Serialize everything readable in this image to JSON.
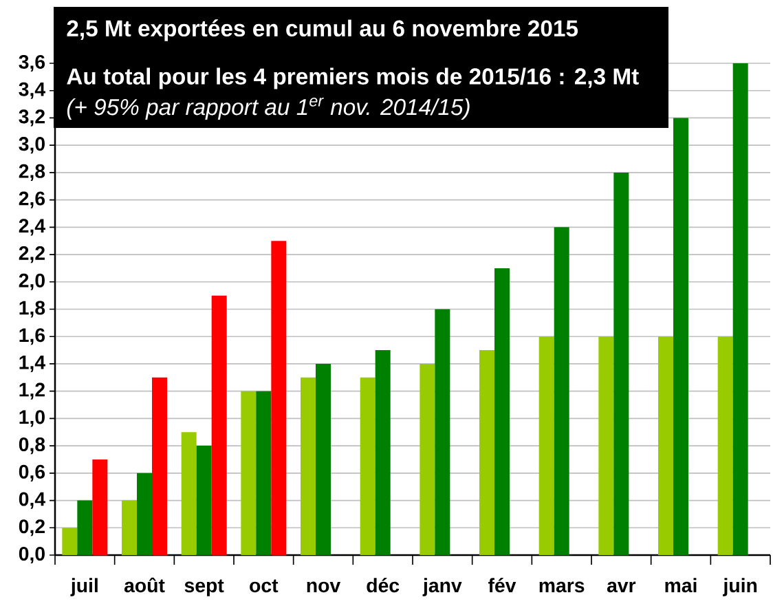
{
  "chart_data": {
    "type": "bar",
    "categories": [
      "juil",
      "août",
      "sept",
      "oct",
      "nov",
      "déc",
      "janv",
      "fév",
      "mars",
      "avr",
      "mai",
      "juin"
    ],
    "series": [
      {
        "color": "#99cc00",
        "values": [
          0.2,
          0.4,
          0.9,
          1.2,
          1.3,
          1.3,
          1.4,
          1.5,
          1.6,
          1.6,
          1.6,
          1.6
        ]
      },
      {
        "color": "#008000",
        "values": [
          0.4,
          0.6,
          0.8,
          1.2,
          1.4,
          1.5,
          1.8,
          2.1,
          2.4,
          2.8,
          3.2,
          3.6
        ]
      },
      {
        "color": "#ff0000",
        "values": [
          0.7,
          1.3,
          1.9,
          2.3,
          null,
          null,
          null,
          null,
          null,
          null,
          null,
          null
        ]
      }
    ],
    "ylim": [
      0,
      3.6
    ],
    "yticks": [
      {
        "value": 0,
        "label": "0,0"
      },
      {
        "value": 0.2,
        "label": "0,2"
      },
      {
        "value": 0.4,
        "label": "0,4"
      },
      {
        "value": 0.6,
        "label": "0,6"
      },
      {
        "value": 0.8,
        "label": "0,8"
      },
      {
        "value": 1.0,
        "label": "1,0"
      },
      {
        "value": 1.2,
        "label": "1,2"
      },
      {
        "value": 1.4,
        "label": "1,4"
      },
      {
        "value": 1.6,
        "label": "1,6"
      },
      {
        "value": 1.8,
        "label": "1,8"
      },
      {
        "value": 2.0,
        "label": "2,0"
      },
      {
        "value": 2.2,
        "label": "2,2"
      },
      {
        "value": 2.4,
        "label": "2,4"
      },
      {
        "value": 2.6,
        "label": "2,6"
      },
      {
        "value": 2.8,
        "label": "2,8"
      },
      {
        "value": 3.0,
        "label": "3,0"
      },
      {
        "value": 3.2,
        "label": "3,2"
      },
      {
        "value": 3.4,
        "label": "3,4"
      },
      {
        "value": 3.6,
        "label": "3,6"
      }
    ],
    "grid": "y",
    "annotations": [
      "2,5 Mt exportées en cumul au 6 novembre 2015",
      "Au total pour les 4 premiers mois de 2015/16 : 2,3 Mt",
      "(+ 95% par rapport au 1$^{er}$ nov. 2014/15)"
    ]
  }
}
